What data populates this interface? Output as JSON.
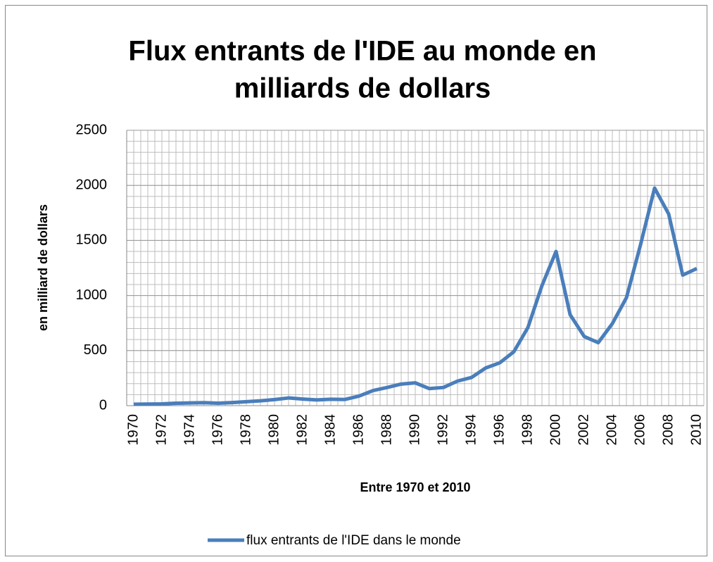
{
  "chart_data": {
    "type": "line",
    "title": [
      "Flux entrants de l'IDE au monde en",
      "milliards de dollars"
    ],
    "x_label": "Entre 1970 et 2010",
    "y_label": "en milliard de dollars",
    "categories": [
      "1970",
      null,
      "1972",
      null,
      "1974",
      null,
      "1976",
      null,
      "1978",
      null,
      "1980",
      null,
      "1982",
      null,
      "1984",
      null,
      "1986",
      null,
      "1988",
      null,
      "1990",
      null,
      "1992",
      null,
      "1994",
      null,
      "1996",
      null,
      "1998",
      null,
      "2000",
      null,
      "2002",
      null,
      "2004",
      null,
      "2006",
      null,
      "2008",
      null,
      "2010"
    ],
    "series": [
      {
        "name": "flux entrants de l'IDE dans le monde",
        "color": "#4a7ebb",
        "values": [
          13,
          14,
          16,
          22,
          25,
          27,
          22,
          28,
          36,
          44,
          55,
          70,
          60,
          52,
          58,
          56,
          87,
          137,
          165,
          196,
          207,
          155,
          165,
          223,
          256,
          342,
          389,
          489,
          709,
          1090,
          1400,
          826,
          628,
          572,
          745,
          980,
          1460,
          1975,
          1740,
          1185,
          1245
        ]
      }
    ],
    "ylim": [
      0,
      2500
    ],
    "yticks": [
      0,
      500,
      1000,
      1500,
      2000,
      2500
    ],
    "grid": true,
    "minor_grid_step": 100,
    "legend": "bottom"
  }
}
